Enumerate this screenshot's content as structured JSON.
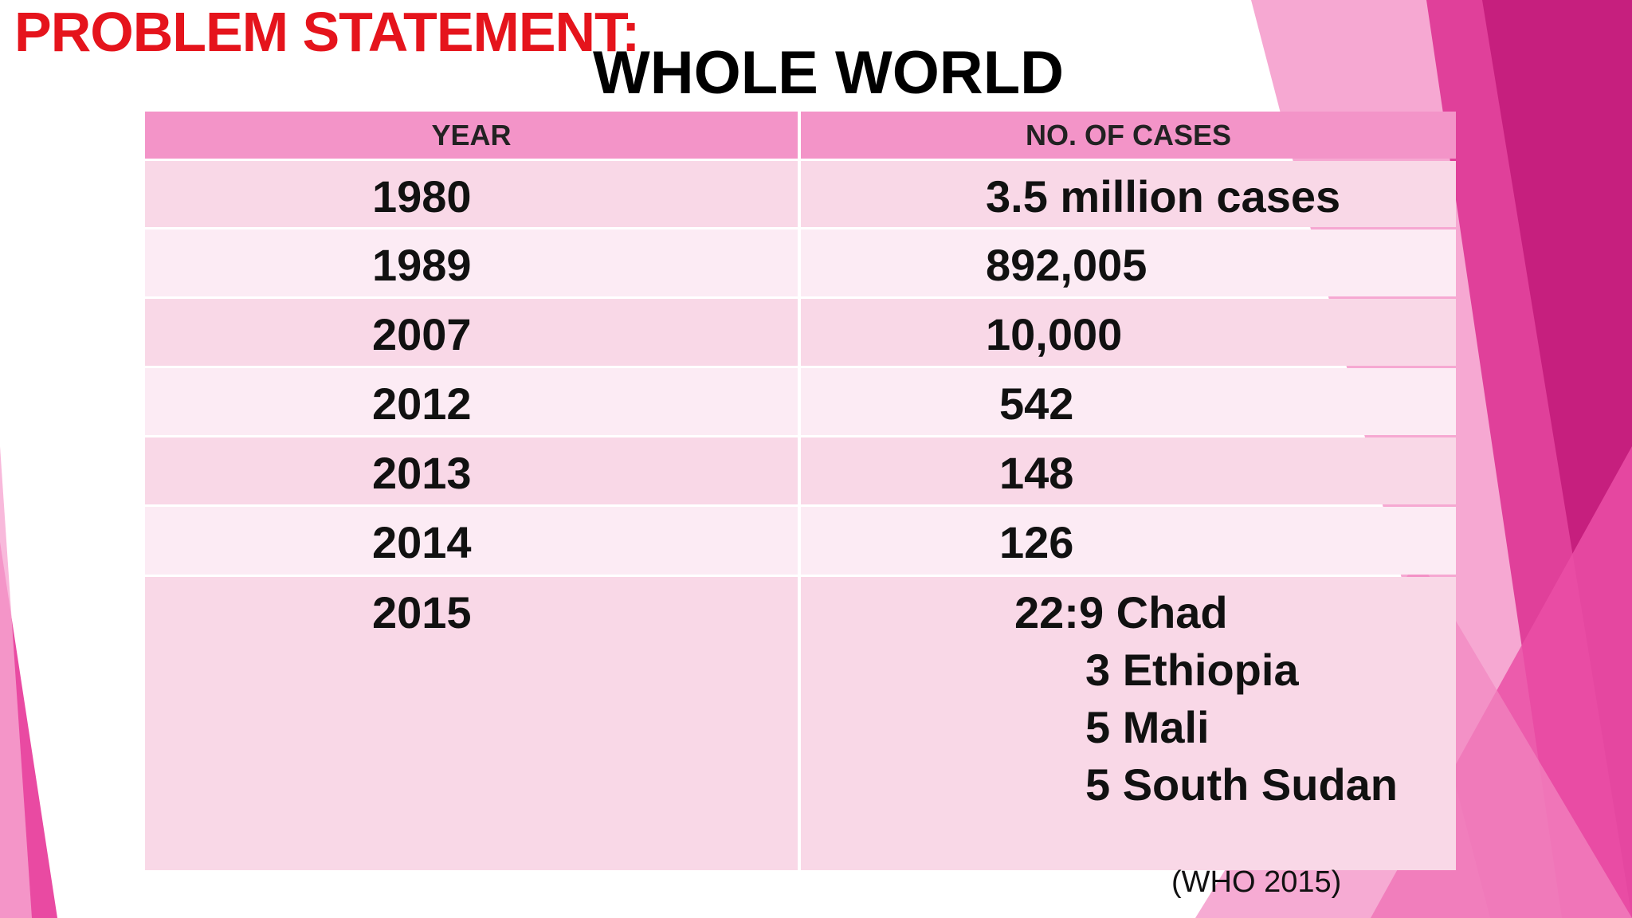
{
  "header": {
    "title": "PROBLEM STATEMENT:",
    "subtitle": "WHOLE WORLD"
  },
  "table": {
    "columns": [
      "YEAR",
      "NO. OF CASES"
    ],
    "rows": [
      [
        "1980",
        "3.5 million cases"
      ],
      [
        "1989",
        "892,005"
      ],
      [
        "2007",
        "10,000"
      ],
      [
        "2012",
        "542"
      ],
      [
        "2013",
        "148"
      ],
      [
        "2014",
        "126"
      ],
      [
        "2015",
        [
          "22:9 Chad",
          "3 Ethiopia",
          "5 Mali",
          "5 South Sudan"
        ]
      ]
    ]
  },
  "footer": {
    "source": "(WHO 2015)"
  }
}
